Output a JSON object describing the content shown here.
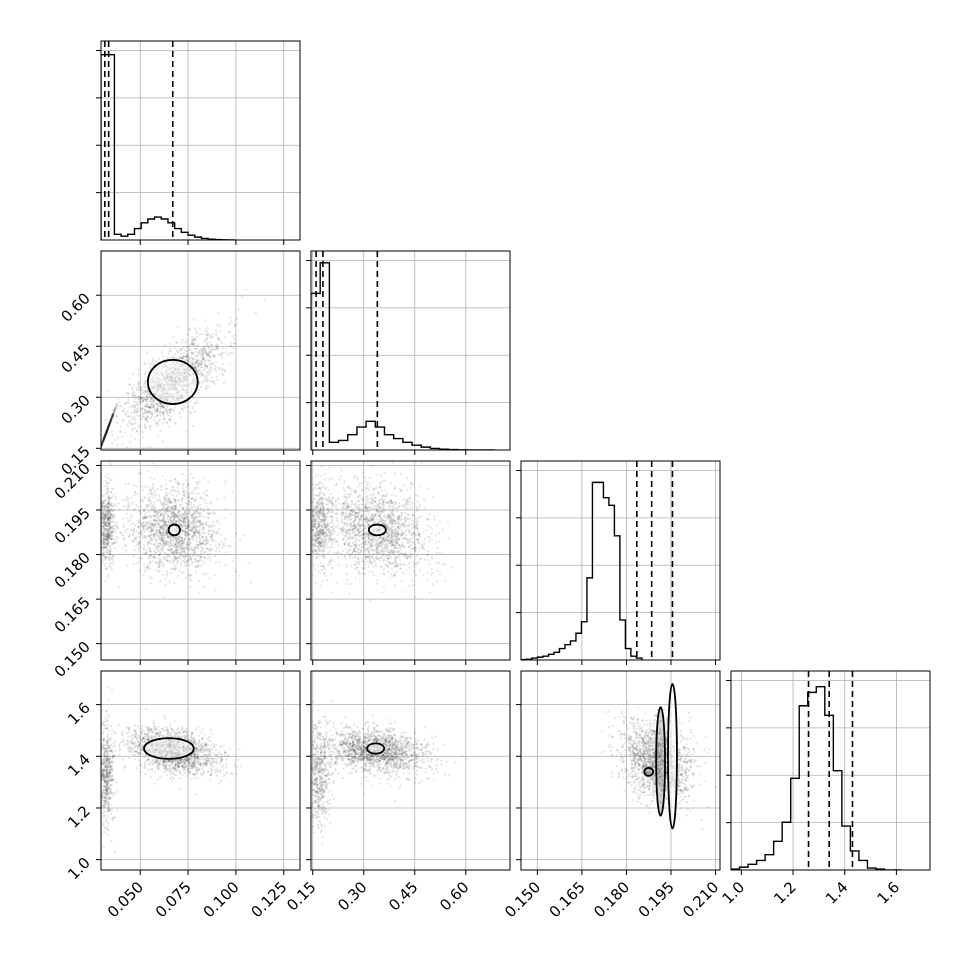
{
  "chart_data": {
    "type": "corner",
    "title": "",
    "n_params": 4,
    "parameters": [
      {
        "name": "",
        "range": [
          0.0295,
          0.1335
        ],
        "ticks": [
          0.05,
          0.075,
          0.1,
          0.125
        ],
        "tick_labels": [
          "0.050",
          "0.075",
          "0.100",
          "0.125"
        ],
        "quantiles": [
          0.0315,
          0.0335,
          0.067
        ]
      },
      {
        "name": "",
        "range": [
          0.145,
          0.73
        ],
        "ticks": [
          0.15,
          0.3,
          0.45,
          0.6
        ],
        "tick_labels": [
          "0.15",
          "0.30",
          "0.45",
          "0.60"
        ],
        "quantiles": [
          0.16,
          0.18,
          0.34
        ]
      },
      {
        "name": "",
        "range": [
          0.1445,
          0.2115
        ],
        "ticks": [
          0.15,
          0.165,
          0.18,
          0.195,
          0.21
        ],
        "tick_labels": [
          "0.150",
          "0.165",
          "0.180",
          "0.195",
          "0.210"
        ],
        "quantiles": [
          0.1835,
          0.1885,
          0.1955
        ]
      },
      {
        "name": "",
        "range": [
          0.96,
          1.73
        ],
        "ticks": [
          1.0,
          1.2,
          1.4,
          1.6
        ],
        "tick_labels": [
          "1.0",
          "1.2",
          "1.4",
          "1.6"
        ],
        "quantiles": [
          1.26,
          1.34,
          1.43
        ]
      }
    ],
    "histograms": [
      {
        "param": 0,
        "bin_width": 0.0035,
        "values": [
          0.97,
          0.97,
          0.03,
          0.02,
          0.03,
          0.06,
          0.09,
          0.11,
          0.12,
          0.11,
          0.09,
          0.06,
          0.04,
          0.025,
          0.015,
          0.008,
          0.004,
          0.002,
          0.001,
          0
        ]
      },
      {
        "param": 1,
        "bin_width": 0.027,
        "values": [
          0.82,
          0.98,
          0.04,
          0.05,
          0.08,
          0.12,
          0.15,
          0.12,
          0.08,
          0.06,
          0.04,
          0.025,
          0.015,
          0.008,
          0.004,
          0.002,
          0.001,
          0,
          0,
          0
        ]
      },
      {
        "param": 2,
        "bin_width": 0.00185,
        "values": [
          0.002,
          0.004,
          0.01,
          0.015,
          0.02,
          0.03,
          0.04,
          0.06,
          0.08,
          0.1,
          0.14,
          0.2,
          0.43,
          0.93,
          0.93,
          0.85,
          0.81,
          0.65,
          0.21,
          0.06,
          0.02,
          0.01
        ]
      },
      {
        "param": 3,
        "bin_width": 0.033,
        "values": [
          0.005,
          0.015,
          0.03,
          0.05,
          0.08,
          0.15,
          0.25,
          0.48,
          0.86,
          0.93,
          0.96,
          0.81,
          0.52,
          0.23,
          0.1,
          0.05,
          0.01,
          0.005,
          0,
          0
        ]
      }
    ],
    "density_contours": [
      {
        "x": 0,
        "y": 1,
        "spikes": [
          {
            "x": 0.0325,
            "y": 0.2,
            "sx": 0.002,
            "sy": 0.03,
            "r": 1
          }
        ],
        "blob": {
          "x": 0.067,
          "y": 0.345,
          "sx": 0.013,
          "sy": 0.07,
          "r": 0.7
        },
        "contours": [
          {
            "x": [
              0.067,
              0.08
            ],
            "y": [
              0.345,
              0.41
            ]
          }
        ]
      },
      {
        "x": 0,
        "y": 2,
        "spikes": [
          {
            "x": 0.0325,
            "y": 0.1895,
            "sx": 0.002,
            "sy": 0.007,
            "r": 0
          }
        ],
        "blob": {
          "x": 0.0675,
          "y": 0.1885,
          "sx": 0.012,
          "sy": 0.0075,
          "r": -0.1
        },
        "contours": [
          {
            "x": [
              0.0678,
              0.0708
            ],
            "y": [
              0.1883,
              0.1865
            ]
          }
        ]
      },
      {
        "x": 1,
        "y": 2,
        "spikes": [
          {
            "x": 0.17,
            "y": 0.1895,
            "sx": 0.018,
            "sy": 0.007,
            "r": 0
          }
        ],
        "blob": {
          "x": 0.34,
          "y": 0.1885,
          "sx": 0.075,
          "sy": 0.0075,
          "r": -0.15
        },
        "contours": [
          {
            "x": [
              0.34,
              0.365
            ],
            "y": [
              0.1883,
              0.1865
            ]
          }
        ]
      },
      {
        "x": 0,
        "y": 3,
        "spikes": [
          {
            "x": 0.0325,
            "y": 1.33,
            "sx": 0.002,
            "sy": 0.1,
            "r": 0
          }
        ],
        "blob": {
          "x": 0.0675,
          "y": 1.42,
          "sx": 0.012,
          "sy": 0.045,
          "r": -0.35
        },
        "contours": [
          {
            "x": [
              0.065,
              0.078
            ],
            "y": [
              1.43,
              1.39
            ]
          }
        ]
      },
      {
        "x": 1,
        "y": 3,
        "spikes": [
          {
            "x": 0.17,
            "y": 1.33,
            "sx": 0.018,
            "sy": 0.1,
            "r": 0
          }
        ],
        "blob": {
          "x": 0.34,
          "y": 1.42,
          "sx": 0.075,
          "sy": 0.045,
          "r": -0.25
        },
        "contours": [
          {
            "x": [
              0.335,
              0.36
            ],
            "y": [
              1.43,
              1.41
            ]
          }
        ]
      },
      {
        "x": 2,
        "y": 3,
        "spikes": [],
        "blob": {
          "x": 0.19,
          "y": 1.38,
          "sx": 0.006,
          "sy": 0.08,
          "r": -0.3
        },
        "contours": [
          {
            "x": [
              0.1875,
              0.189
            ],
            "y": [
              1.34,
              1.34
            ]
          },
          {
            "x": [
              0.1915,
              0.193
            ],
            "y": [
              1.38,
              1.17
            ]
          },
          {
            "x": [
              0.1955,
              0.197
            ],
            "y": [
              1.4,
              1.12
            ]
          }
        ]
      }
    ]
  }
}
